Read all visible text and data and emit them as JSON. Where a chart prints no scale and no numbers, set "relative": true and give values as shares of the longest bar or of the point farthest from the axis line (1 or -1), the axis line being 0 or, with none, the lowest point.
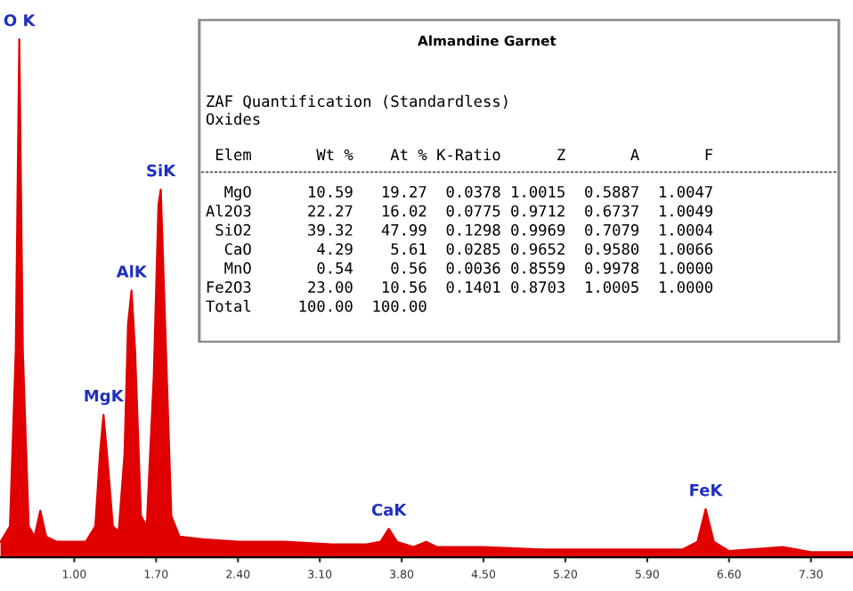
{
  "chart_data": {
    "type": "area",
    "relative": true,
    "color": "#e00000",
    "grid": false,
    "legend": false,
    "x": [
      0.37,
      0.45,
      0.5,
      0.53,
      0.56,
      0.61,
      0.66,
      0.71,
      0.76,
      0.85,
      1.0,
      1.1,
      1.18,
      1.22,
      1.25,
      1.28,
      1.33,
      1.38,
      1.43,
      1.46,
      1.49,
      1.52,
      1.57,
      1.62,
      1.68,
      1.72,
      1.74,
      1.77,
      1.83,
      1.9,
      2.1,
      2.4,
      2.8,
      3.2,
      3.5,
      3.62,
      3.69,
      3.76,
      3.9,
      4.01,
      4.1,
      4.5,
      5.0,
      5.5,
      5.9,
      6.2,
      6.33,
      6.4,
      6.47,
      6.6,
      7.06,
      7.3,
      7.66
    ],
    "values": [
      0.03,
      0.06,
      0.4,
      1.0,
      0.4,
      0.06,
      0.04,
      0.09,
      0.04,
      0.03,
      0.03,
      0.03,
      0.06,
      0.2,
      0.275,
      0.2,
      0.06,
      0.05,
      0.2,
      0.45,
      0.515,
      0.4,
      0.08,
      0.06,
      0.35,
      0.68,
      0.71,
      0.5,
      0.08,
      0.04,
      0.035,
      0.03,
      0.03,
      0.025,
      0.025,
      0.03,
      0.055,
      0.03,
      0.02,
      0.03,
      0.02,
      0.02,
      0.015,
      0.015,
      0.015,
      0.015,
      0.03,
      0.093,
      0.03,
      0.012,
      0.02,
      0.01,
      0.01
    ],
    "xlim": [
      0.365,
      7.66
    ],
    "xticks": [
      {
        "value": 1.0,
        "label": "1.00"
      },
      {
        "value": 1.7,
        "label": "1.70"
      },
      {
        "value": 2.4,
        "label": "2.40"
      },
      {
        "value": 3.1,
        "label": "3.10"
      },
      {
        "value": 3.8,
        "label": "3.80"
      },
      {
        "value": 4.5,
        "label": "4.50"
      },
      {
        "value": 5.2,
        "label": "5.20"
      },
      {
        "value": 5.9,
        "label": "5.90"
      },
      {
        "value": 6.6,
        "label": "6.60"
      },
      {
        "value": 7.3,
        "label": "7.30"
      }
    ],
    "annotations": [
      {
        "text": "O K",
        "x": 0.53,
        "y": 1.0
      },
      {
        "text": "MgK",
        "x": 1.25,
        "y": 0.275
      },
      {
        "text": "AlK",
        "x": 1.49,
        "y": 0.515
      },
      {
        "text": "SiK",
        "x": 1.74,
        "y": 0.71
      },
      {
        "text": "CaK",
        "x": 3.69,
        "y": 0.055
      },
      {
        "text": "FeK",
        "x": 6.4,
        "y": 0.093
      },
      "Almandine Garnet",
      "ZAF Quantification (Standardless)",
      "Oxides",
      " Elem       Wt %    At % K-Ratio      Z       A       F",
      "  MgO      10.59   19.27  0.0378 1.0015  0.5887  1.0047",
      "Al2O3      22.27   16.02  0.0775 0.9712  0.6737  1.0049",
      " SiO2      39.32   47.99  0.1298 0.9969  0.7079  1.0004",
      "  CaO       4.29    5.61  0.0285 0.9652  0.9580  1.0066",
      "  MnO       0.54    0.56  0.0036 0.8559  0.9978  1.0000",
      "Fe2O3      23.00   10.56  0.1401 0.8703  1.0005  1.0000",
      "Total     100.00  100.00"
    ]
  }
}
